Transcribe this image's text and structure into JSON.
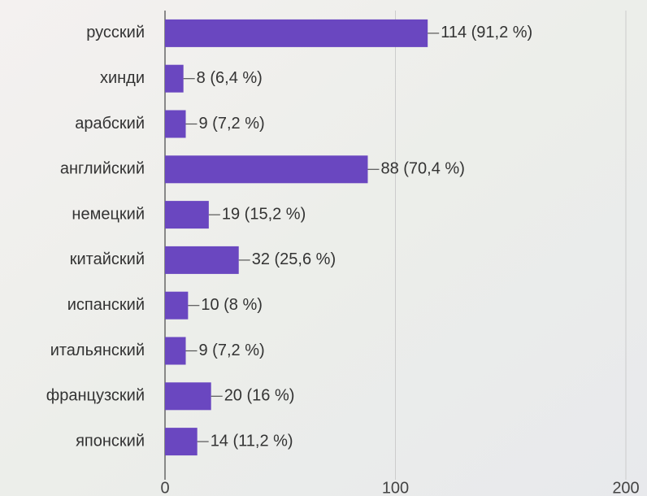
{
  "chart_data": {
    "type": "bar",
    "orientation": "horizontal",
    "categories": [
      "русский",
      "хинди",
      "арабский",
      "английский",
      "немецкий",
      "китайский",
      "испанский",
      "итальянский",
      "французский",
      "японский"
    ],
    "values": [
      114,
      8,
      9,
      88,
      19,
      32,
      10,
      9,
      20,
      14
    ],
    "value_labels": [
      "114 (91,2 %)",
      "8 (6,4 %)",
      "9 (7,2 %)",
      "88 (70,4 %)",
      "19 (15,2 %)",
      "32 (25,6 %)",
      "10 (8 %)",
      "9 (7,2 %)",
      "20 (16 %)",
      "14 (11,2 %)"
    ],
    "color": "#6a47c0",
    "xlim": [
      0,
      200
    ],
    "xticks": [
      0,
      100,
      200
    ],
    "grid": true
  }
}
